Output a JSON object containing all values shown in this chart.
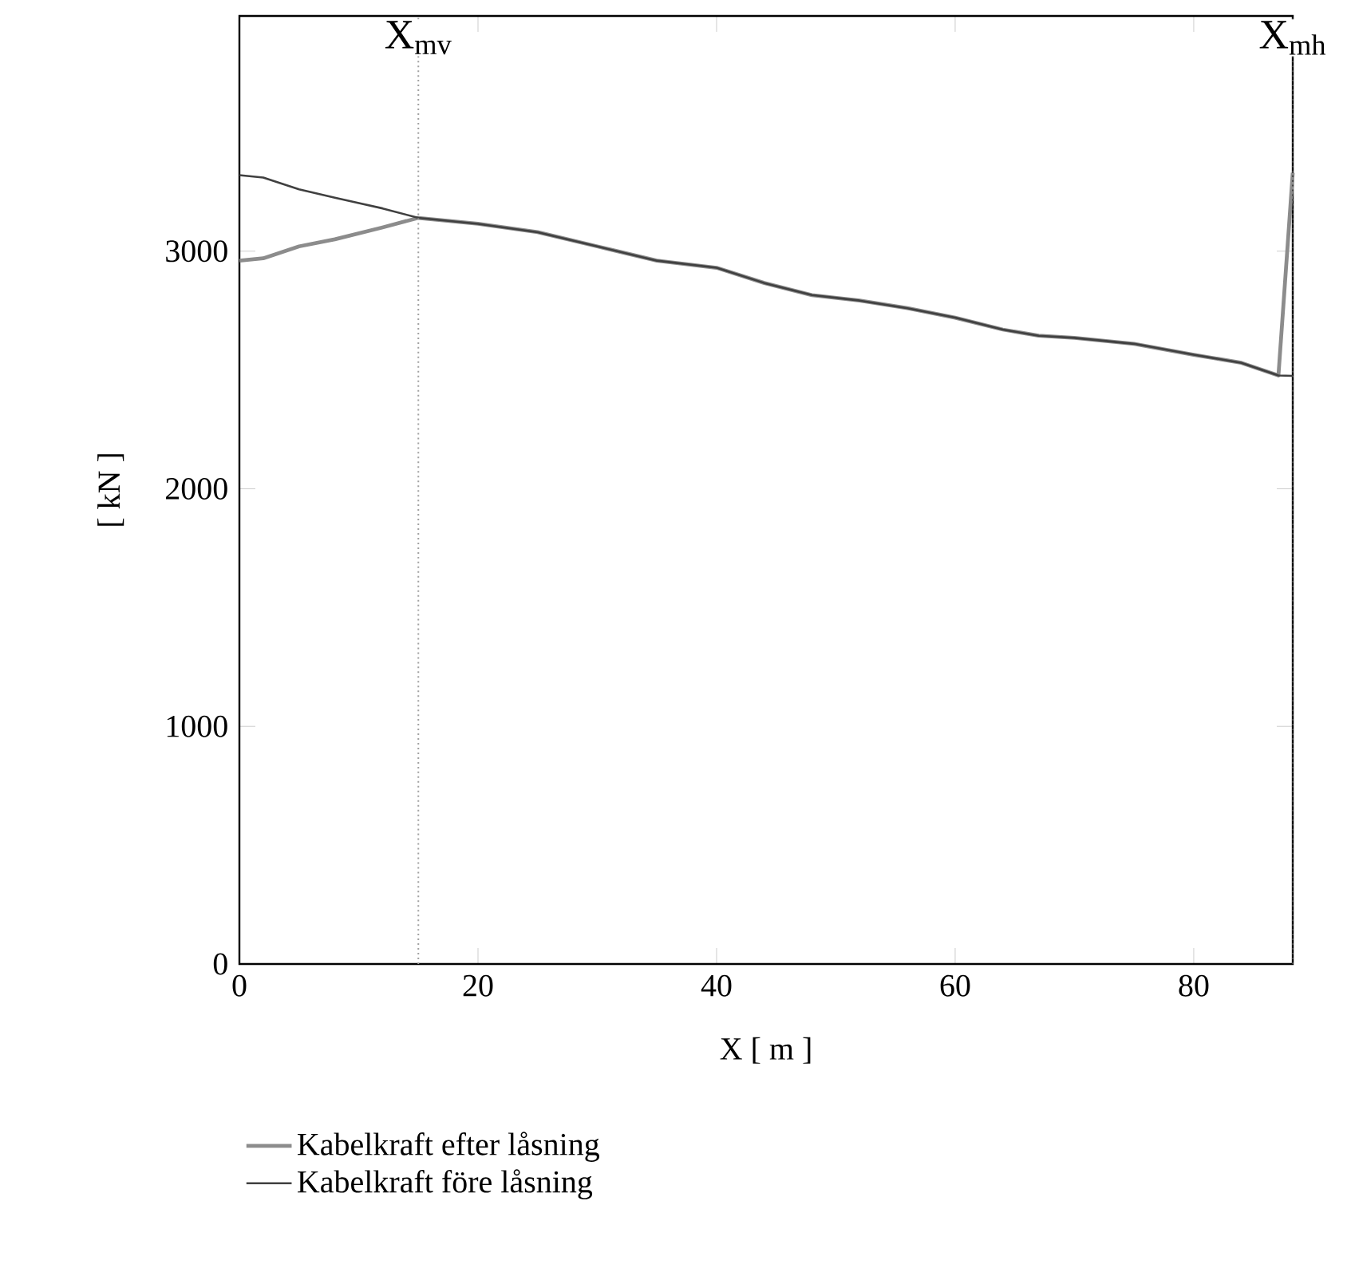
{
  "chart_data": {
    "type": "line",
    "xlabel": "X   [ m ]",
    "ylabel": "[ kN ]",
    "xlim": [
      0,
      88.3
    ],
    "ylim": [
      0,
      3990
    ],
    "xticks": [
      0,
      20,
      40,
      60,
      80
    ],
    "yticks": [
      0,
      1000,
      2000,
      3000
    ],
    "grid": false,
    "legend": "bottom",
    "marker": "none",
    "series": [
      {
        "name": "Kabelkraft efter låsning",
        "color": "#8c8c8c",
        "x": [
          0,
          2,
          5,
          8,
          12,
          15,
          20,
          25,
          30,
          35,
          40,
          44,
          48,
          52,
          56,
          60,
          64,
          67,
          70,
          75,
          80,
          84,
          87.1,
          88.3
        ],
        "values": [
          2960,
          2970,
          3020,
          3050,
          3100,
          3140,
          3115,
          3080,
          3020,
          2960,
          2930,
          2866,
          2815,
          2792,
          2760,
          2720,
          2670,
          2644,
          2635,
          2610,
          2564,
          2530,
          2477,
          3330
        ]
      },
      {
        "name": "Kabelkraft  före låsning",
        "color": "#404040",
        "x": [
          0,
          2,
          5,
          8,
          12,
          15,
          20,
          25,
          30,
          35,
          40,
          44,
          48,
          52,
          56,
          60,
          64,
          67,
          70,
          75,
          80,
          84,
          87.1,
          88.3
        ],
        "values": [
          3320,
          3310,
          3260,
          3225,
          3180,
          3140,
          3115,
          3080,
          3020,
          2960,
          2930,
          2866,
          2815,
          2792,
          2760,
          2720,
          2670,
          2644,
          2635,
          2610,
          2564,
          2530,
          2477,
          2475
        ]
      }
    ],
    "ref_lines": [
      {
        "axis": "x",
        "value": 15,
        "label": "X$_{mv}$",
        "color": "#a0a0a0",
        "line_style": "dotted"
      },
      {
        "axis": "x",
        "value": 88.3,
        "label": "X$_{mh}$",
        "color": "#404040",
        "line_style": "dotted"
      }
    ]
  }
}
